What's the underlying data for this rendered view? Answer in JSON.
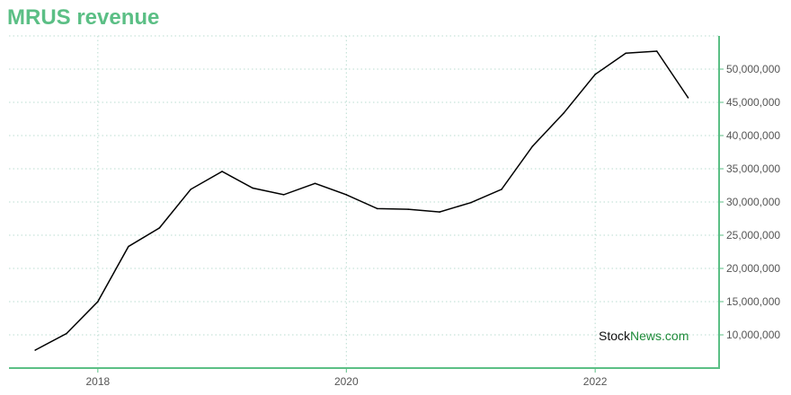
{
  "chart_data": {
    "type": "line",
    "title": "MRUS revenue",
    "xlabel": "",
    "ylabel": "",
    "x": [
      "2017-07-01",
      "2017-10-01",
      "2018-01-01",
      "2018-04-01",
      "2018-07-01",
      "2018-10-01",
      "2019-01-01",
      "2019-04-01",
      "2019-07-01",
      "2019-10-01",
      "2020-01-01",
      "2020-04-01",
      "2020-07-01",
      "2020-10-01",
      "2021-01-01",
      "2021-04-01",
      "2021-07-01",
      "2021-10-01",
      "2022-01-01",
      "2022-04-01",
      "2022-07-01",
      "2022-10-01"
    ],
    "series": [
      {
        "values": [
          7700000,
          10200000,
          15000000,
          23300000,
          26100000,
          31900000,
          34600000,
          32100000,
          31100000,
          32800000,
          31100000,
          29000000,
          28900000,
          28500000,
          29900000,
          31900000,
          38400000,
          43400000,
          49200000,
          52400000,
          52700000,
          45700000
        ]
      }
    ],
    "xlim": [
      "2017-04-15",
      "2022-12-31"
    ],
    "x_ticks": [
      "2018",
      "2020",
      "2022"
    ],
    "ylim": [
      5000000,
      55000000
    ],
    "y_ticks": [
      {
        "value": 10000000,
        "label": "10,000,000"
      },
      {
        "value": 15000000,
        "label": "15,000,000"
      },
      {
        "value": 20000000,
        "label": "20,000,000"
      },
      {
        "value": 25000000,
        "label": "25,000,000"
      },
      {
        "value": 30000000,
        "label": "30,000,000"
      },
      {
        "value": 35000000,
        "label": "35,000,000"
      },
      {
        "value": 40000000,
        "label": "40,000,000"
      },
      {
        "value": 45000000,
        "label": "45,000,000"
      },
      {
        "value": 50000000,
        "label": "50,000,000"
      }
    ],
    "grid": true,
    "y_axis_position": "right"
  },
  "watermark": {
    "part1": "Stock",
    "part2": "News.com"
  },
  "colors": {
    "title": "#5bbf85",
    "axis": "#5bbf85",
    "grid": "#b9dcd0",
    "line": "#000000",
    "watermark_dark": "#111111",
    "watermark_green": "#1f8b3a"
  }
}
